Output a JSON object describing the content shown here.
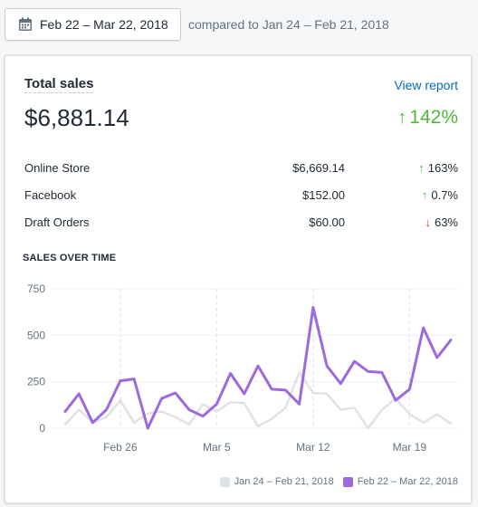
{
  "header": {
    "date_range": "Feb 22 – Mar 22, 2018",
    "compare_text": "compared to Jan 24 – Feb 21, 2018",
    "icon": "calendar-icon"
  },
  "card": {
    "title": "Total sales",
    "view_report": "View report",
    "total": "$6,881.14",
    "total_change": "142%",
    "rows": [
      {
        "name": "Online Store",
        "amount": "$6,669.14",
        "change": "163%",
        "direction": "up"
      },
      {
        "name": "Facebook",
        "amount": "$152.00",
        "change": "0.7%",
        "direction": "up"
      },
      {
        "name": "Draft Orders",
        "amount": "$60.00",
        "change": "63%",
        "direction": "down"
      }
    ],
    "chart_heading": "SALES OVER TIME"
  },
  "colors": {
    "up": "#50b83c",
    "down": "#de3618",
    "current": "#9c6ade",
    "previous": "#dfe3e8",
    "link": "#006fbb"
  },
  "chart_data": {
    "type": "line",
    "ylim": [
      0,
      750
    ],
    "yticks": [
      0,
      250,
      500,
      750
    ],
    "x_tick_labels": [
      "Feb 26",
      "Mar 5",
      "Mar 12",
      "Mar 19"
    ],
    "x_tick_index": [
      4,
      11,
      18,
      25
    ],
    "x": [
      "Feb 22",
      "Feb 23",
      "Feb 24",
      "Feb 25",
      "Feb 26",
      "Feb 27",
      "Feb 28",
      "Mar 1",
      "Mar 2",
      "Mar 3",
      "Mar 4",
      "Mar 5",
      "Mar 6",
      "Mar 7",
      "Mar 8",
      "Mar 9",
      "Mar 10",
      "Mar 11",
      "Mar 12",
      "Mar 13",
      "Mar 14",
      "Mar 15",
      "Mar 16",
      "Mar 17",
      "Mar 18",
      "Mar 19",
      "Mar 20",
      "Mar 21",
      "Mar 22"
    ],
    "series": [
      {
        "name": "Jan 24 – Feb 21, 2018",
        "color": "#dfe3e8",
        "values": [
          20,
          100,
          30,
          60,
          150,
          30,
          80,
          90,
          60,
          20,
          130,
          90,
          140,
          135,
          10,
          50,
          110,
          300,
          190,
          185,
          100,
          110,
          0,
          100,
          160,
          75,
          30,
          75,
          25
        ]
      },
      {
        "name": "Feb 22 – Mar 22, 2018",
        "color": "#9c6ade",
        "values": [
          90,
          185,
          30,
          100,
          255,
          265,
          0,
          160,
          190,
          100,
          65,
          130,
          295,
          185,
          335,
          210,
          205,
          130,
          650,
          335,
          240,
          360,
          305,
          300,
          150,
          210,
          540,
          380,
          475
        ]
      }
    ]
  }
}
